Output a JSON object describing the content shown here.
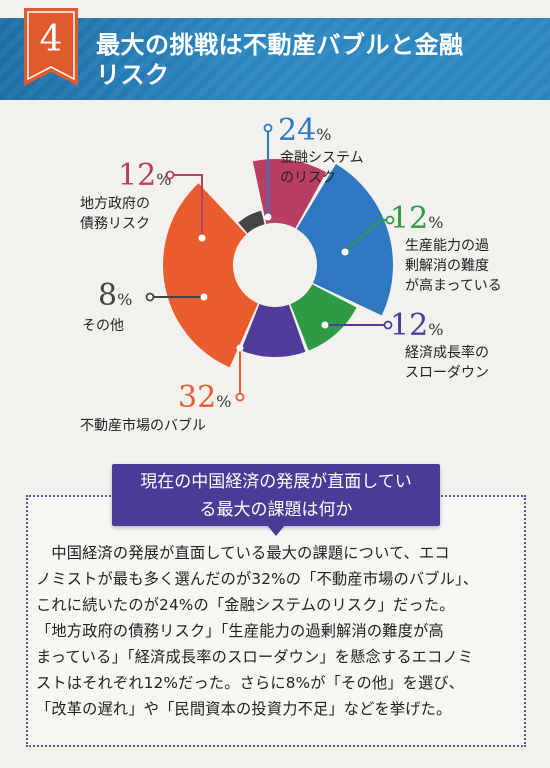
{
  "header": {
    "number": "4",
    "title_line1": "最大の挑戦は不動産バブルと金融",
    "title_line2": "リスク"
  },
  "colors": {
    "header_blue": "#2a86bf",
    "badge_orange": "#e15a2d",
    "blue": "#2e78c2",
    "green": "#2f9a45",
    "purple": "#4e3b9a",
    "orange": "#e85c2e",
    "gray": "#444444",
    "crimson": "#b93e63"
  },
  "chart_data": {
    "type": "pie",
    "slices": [
      {
        "pct": "24",
        "unit": "%",
        "label_lines": [
          "金融システム",
          "のリスク"
        ],
        "value": 24,
        "color": "#2e78c2"
      },
      {
        "pct": "12",
        "unit": "%",
        "label_lines": [
          "生産能力の過",
          "剰解消の難度",
          "が高まっている"
        ],
        "value": 12,
        "color": "#2f9a45"
      },
      {
        "pct": "12",
        "unit": "%",
        "label_lines": [
          "経済成長率の",
          "スローダウン"
        ],
        "value": 12,
        "color": "#4e3b9a"
      },
      {
        "pct": "32",
        "unit": "%",
        "label_lines": [
          "不動産市場のバブル"
        ],
        "value": 32,
        "color": "#e85c2e"
      },
      {
        "pct": "8",
        "unit": "%",
        "label_lines": [
          "その他"
        ],
        "value": 8,
        "color": "#444444"
      },
      {
        "pct": "12",
        "unit": "%",
        "label_lines": [
          "地方政府の",
          "債務リスク"
        ],
        "value": 12,
        "color": "#b93e63"
      }
    ]
  },
  "question": {
    "line1": "現在の中国経済の発展が直面してい",
    "line2": "る最大の課題は何か"
  },
  "body": {
    "lines": [
      "　中国経済の発展が直面している最大の課題について、エコ",
      "ノミストが最も多く選んだのが32%の「不動産市場のバブル」、",
      "これに続いたのが24%の「金融システムのリスク」だった。",
      "「地方政府の債務リスク」「生産能力の過剰解消の難度が高",
      "まっている」「経済成長率のスローダウン」を懸念するエコノミ",
      "ストはそれぞれ12%だった。さらに8%が「その他」を選び、",
      "「改革の遅れ」や「民間資本の投資力不足」などを挙げた。"
    ]
  }
}
